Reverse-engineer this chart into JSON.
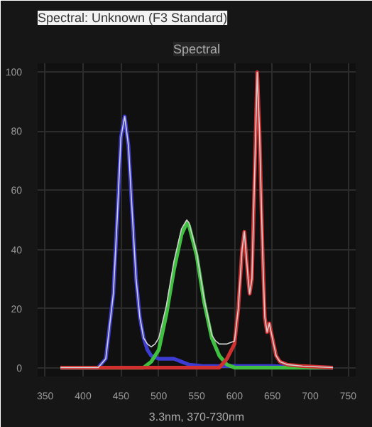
{
  "chart_data": {
    "type": "line",
    "title": "Spectral: Unknown (F3 Standard)",
    "subtitle": "Spectral",
    "xlabel": "3.3nm, 370-730nm",
    "xlim": [
      340,
      760
    ],
    "ylim": [
      -3,
      103
    ],
    "xticks": [
      350,
      400,
      450,
      500,
      550,
      600,
      650,
      700,
      750
    ],
    "yticks": [
      0,
      20,
      40,
      60,
      80,
      100
    ],
    "grid": true,
    "series": [
      {
        "color": "#d0d0d0",
        "x": [
          370,
          420,
          430,
          440,
          445,
          450,
          455,
          460,
          465,
          470,
          475,
          480,
          485,
          490,
          495,
          500,
          510,
          520,
          530,
          537,
          540,
          550,
          560,
          570,
          575,
          580,
          590,
          600,
          605,
          610,
          613,
          618,
          620,
          623,
          627,
          630,
          633,
          637,
          640,
          643,
          646,
          650,
          655,
          660,
          670,
          690,
          730
        ],
        "values": [
          0,
          0,
          3,
          25,
          50,
          78,
          85,
          75,
          52,
          30,
          17,
          10,
          8,
          7,
          8,
          10,
          21,
          36,
          47,
          50,
          49,
          39,
          23,
          11,
          9,
          8,
          8,
          9,
          20,
          40,
          46,
          30,
          25,
          30,
          70,
          100,
          80,
          40,
          17,
          12,
          15,
          10,
          4,
          2,
          1,
          0.5,
          0
        ]
      },
      {
        "color": "#3c3cd2",
        "x": [
          370,
          420,
          430,
          440,
          445,
          450,
          455,
          460,
          465,
          470,
          475,
          480,
          485,
          490,
          500,
          510,
          520,
          530,
          540,
          560,
          600,
          650,
          700,
          730
        ],
        "values": [
          0,
          0,
          3,
          25,
          50,
          78,
          85,
          75,
          52,
          30,
          17,
          10,
          6,
          4,
          3,
          3,
          3,
          2,
          1,
          0.5,
          0.5,
          0.5,
          0,
          0
        ]
      },
      {
        "color": "#40c040",
        "x": [
          370,
          470,
          480,
          490,
          500,
          510,
          520,
          530,
          537,
          540,
          550,
          560,
          570,
          580,
          590,
          600,
          730
        ],
        "values": [
          0,
          0,
          0,
          2,
          6,
          18,
          33,
          45,
          49,
          48,
          38,
          22,
          10,
          4,
          1,
          0,
          0
        ]
      },
      {
        "color": "#d03030",
        "x": [
          370,
          580,
          590,
          600,
          605,
          610,
          613,
          618,
          620,
          623,
          627,
          630,
          633,
          637,
          640,
          643,
          646,
          650,
          655,
          660,
          670,
          690,
          730
        ],
        "values": [
          0,
          0,
          3,
          8,
          20,
          40,
          46,
          30,
          25,
          30,
          70,
          100,
          80,
          40,
          17,
          12,
          15,
          10,
          4,
          2,
          1,
          0.5,
          0
        ]
      }
    ]
  }
}
